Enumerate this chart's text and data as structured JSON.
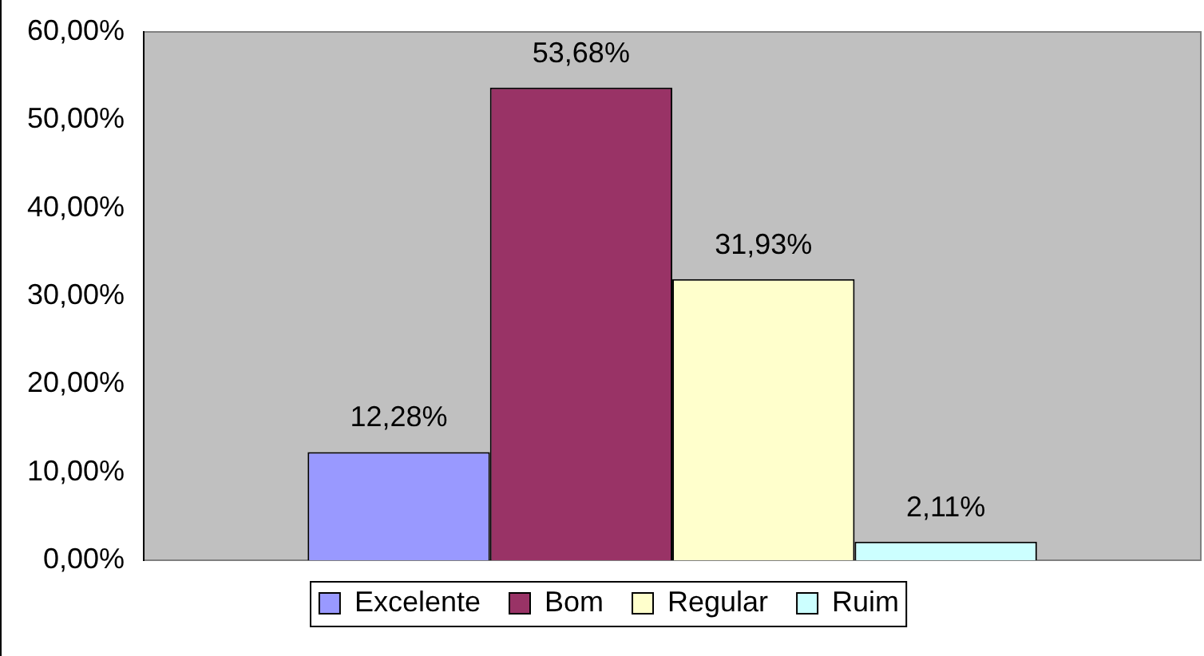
{
  "chart_data": {
    "type": "bar",
    "categories": [
      null
    ],
    "series": [
      {
        "name": "Excelente",
        "color": "#9999ff",
        "values": [
          12.28
        ],
        "value_labels": [
          "12,28%"
        ]
      },
      {
        "name": "Bom",
        "color": "#993366",
        "values": [
          53.68
        ],
        "value_labels": [
          "53,68%"
        ]
      },
      {
        "name": "Regular",
        "color": "#ffffcc",
        "values": [
          31.93
        ],
        "value_labels": [
          "31,93%"
        ]
      },
      {
        "name": "Ruim",
        "color": "#ccffff",
        "values": [
          2.11
        ],
        "value_labels": [
          "2,11%"
        ]
      }
    ],
    "ylim": [
      0,
      60
    ],
    "yticks": [
      {
        "value": 0,
        "label": "0,00%"
      },
      {
        "value": 10,
        "label": "10,00%"
      },
      {
        "value": 20,
        "label": "20,00%"
      },
      {
        "value": 30,
        "label": "30,00%"
      },
      {
        "value": 40,
        "label": "40,00%"
      },
      {
        "value": 50,
        "label": "50,00%"
      },
      {
        "value": 60,
        "label": "60,00%"
      }
    ],
    "grid": false,
    "legend": "bottom"
  }
}
